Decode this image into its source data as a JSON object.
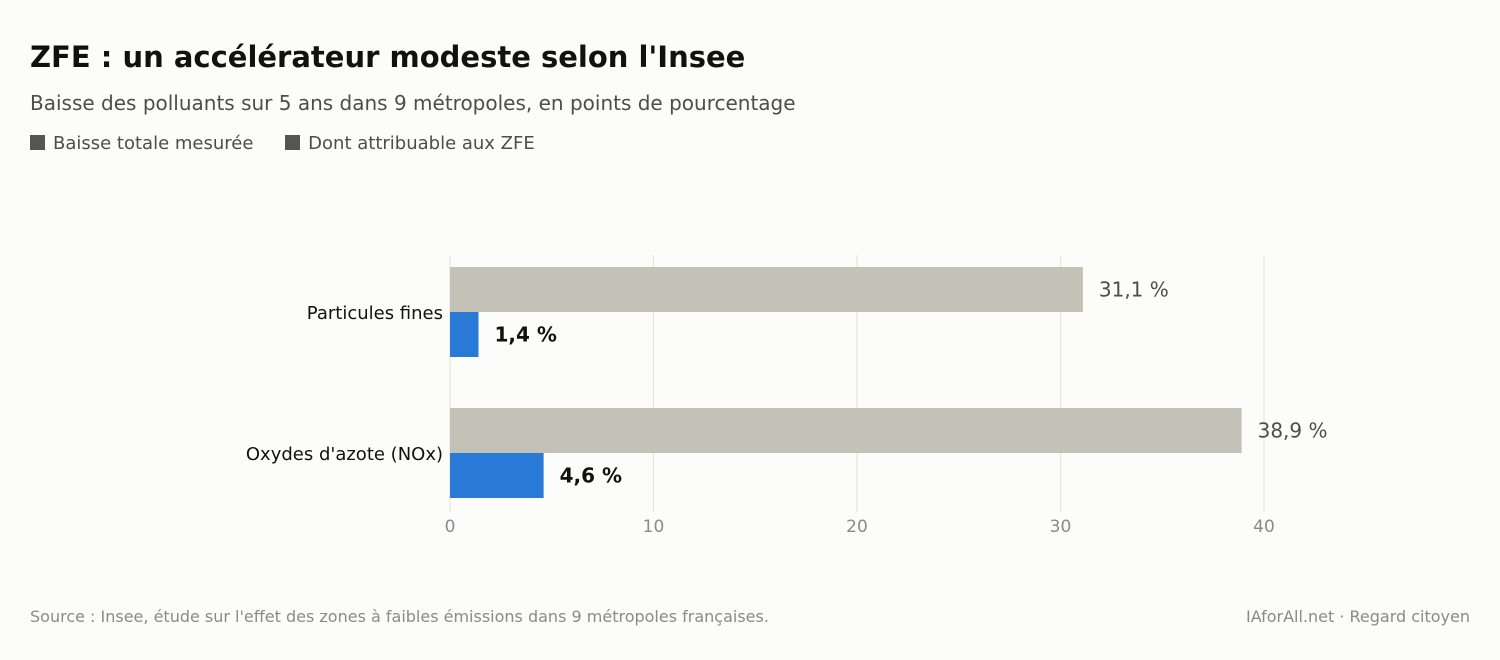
{
  "header": {
    "title": "ZFE : un accélérateur modeste selon l'Insee",
    "subtitle": "Baisse des polluants sur 5 ans dans 9 métropoles, en points de pourcentage"
  },
  "legend": {
    "items": [
      {
        "label": "Baisse totale mesurée"
      },
      {
        "label": "Dont attribuable aux ZFE"
      }
    ]
  },
  "chart_data": {
    "type": "bar",
    "orientation": "horizontal",
    "title": "ZFE : un accélérateur modeste selon l'Insee",
    "subtitle": "Baisse des polluants sur 5 ans dans 9 métropoles, en points de pourcentage",
    "categories": [
      "Particules fines",
      "Oxydes d'azote (NOx)"
    ],
    "series": [
      {
        "name": "Baisse totale mesurée",
        "values": [
          31.1,
          38.9
        ],
        "labels": [
          "31,1 %",
          "38,9 %"
        ],
        "color": "#c2c2b6"
      },
      {
        "name": "Dont attribuable aux ZFE",
        "values": [
          1.4,
          4.6
        ],
        "labels": [
          "1,4 %",
          "4,6 %"
        ],
        "color": "#2979d6"
      }
    ],
    "xlim": [
      0,
      40
    ],
    "xticks": [
      0,
      10,
      20,
      30,
      40
    ],
    "xlabel": "",
    "ylabel": "",
    "grid": "vertical",
    "legend_position": "top-left"
  },
  "footer": {
    "source": "Source : Insee, étude sur l'effet des zones à faibles émissions dans 9 métropoles françaises.",
    "credit": "IAforAll.net · Regard citoyen"
  },
  "colors": {
    "background": "#fcfcfa",
    "total_bar": "#c2c2b6",
    "zfe_bar": "#2979d6",
    "grid": "#e4e4e0",
    "tick_text": "#8a8a8a",
    "title_text": "#111111",
    "muted_text": "#4d4d4d"
  }
}
